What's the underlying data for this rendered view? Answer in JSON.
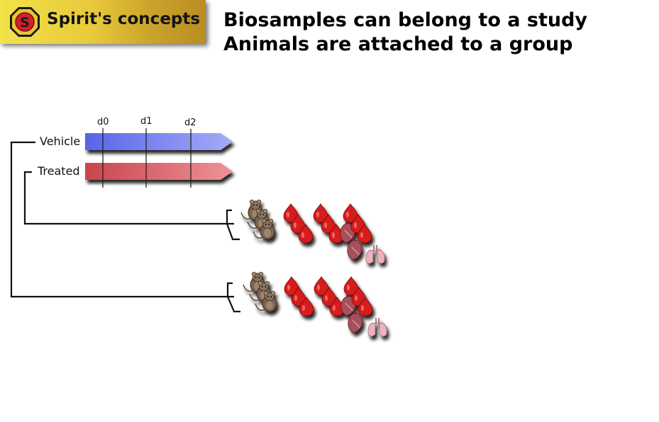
{
  "header": {
    "logo_text": "Spirit's concepts",
    "logo_letter": "S"
  },
  "headline": {
    "line1": "Biosamples can belong to a study",
    "line2": "Animals are attached to a group"
  },
  "timeline": {
    "days": [
      "d0",
      "d1",
      "d2"
    ],
    "groups": [
      {
        "label": "Vehicle",
        "color": "#6a74ee"
      },
      {
        "label": "Treated",
        "color": "#d24e57"
      }
    ]
  },
  "icons": [
    "rat-icon",
    "blood-drop-icon",
    "heart-icon",
    "lungs-icon"
  ]
}
